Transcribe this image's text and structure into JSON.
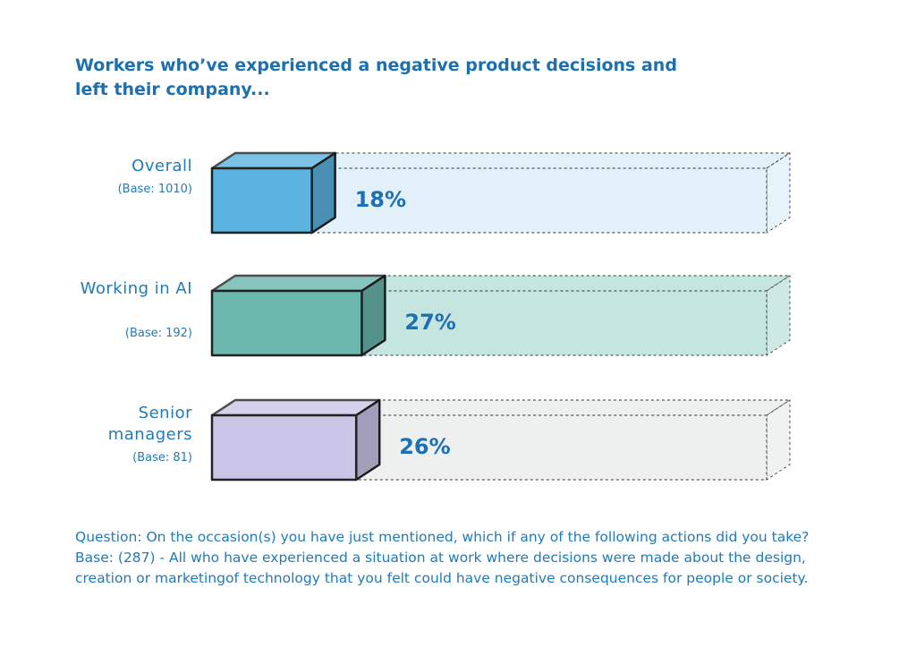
{
  "chart_data": {
    "type": "bar3d",
    "title": "Workers who’ve experienced a negative product decisions and left their company...",
    "categories": [
      "Overall",
      "Working in AI",
      "Senior managers"
    ],
    "bases": [
      "(Base: 1010)",
      "(Base: 192)",
      "(Base: 81)"
    ],
    "values": [
      18,
      27,
      26
    ],
    "value_labels": [
      "18%",
      "27%",
      "26%"
    ],
    "colors": [
      "#5bb3e0",
      "#6ab7ae",
      "#cbc5e8"
    ],
    "track_colors": [
      "#e2f1f9",
      "#c5e5e1",
      "#eef0ef"
    ],
    "xlim": [
      0,
      100
    ],
    "footnote": "Question: On the occasion(s) you have just mentioned, which if any of the following actions did you take?  Base: (287) - All who have experienced a situation at work where decisions were made about the design, creation or marketingof technology that you felt could have negative consequences for people or society."
  }
}
